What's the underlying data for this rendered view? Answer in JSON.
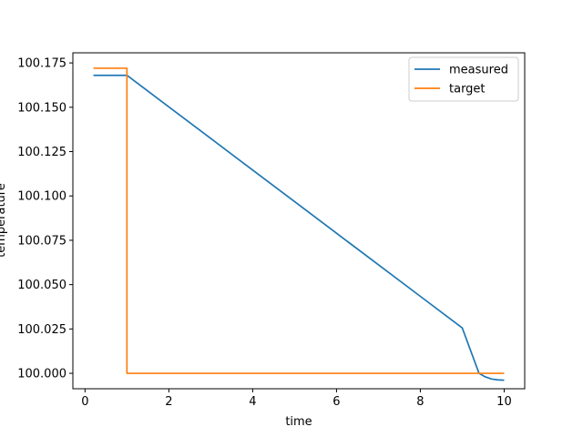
{
  "chart_data": {
    "type": "line",
    "title": "",
    "xlabel": "time",
    "ylabel": "temperature",
    "xlim": [
      -0.29,
      10.49
    ],
    "ylim": [
      99.9913,
      100.1807
    ],
    "xticks": [
      0,
      2,
      4,
      6,
      8,
      10
    ],
    "xtick_labels": [
      "0",
      "2",
      "4",
      "6",
      "8",
      "10"
    ],
    "yticks": [
      100.0,
      100.025,
      100.05,
      100.075,
      100.1,
      100.125,
      100.15,
      100.175
    ],
    "ytick_labels": [
      "100.000",
      "100.025",
      "100.050",
      "100.075",
      "100.100",
      "100.125",
      "100.150",
      "100.175"
    ],
    "grid": false,
    "legend_position": "upper-right",
    "series": [
      {
        "name": "measured",
        "color": "#1f77b4",
        "x": [
          0.2,
          1.0,
          2.0,
          3.0,
          4.0,
          5.0,
          6.0,
          7.0,
          8.0,
          9.0,
          9.4,
          9.55,
          9.7,
          9.85,
          10.0
        ],
        "y": [
          100.168,
          100.168,
          100.1502,
          100.1324,
          100.1146,
          100.0968,
          100.079,
          100.0612,
          100.0434,
          100.0256,
          100.0,
          99.998,
          99.9968,
          99.9963,
          99.9961
        ]
      },
      {
        "name": "target",
        "color": "#ff7f0e",
        "x": [
          0.2,
          1.0,
          1.0,
          10.0
        ],
        "y": [
          100.172,
          100.172,
          100.0,
          100.0
        ]
      }
    ]
  }
}
